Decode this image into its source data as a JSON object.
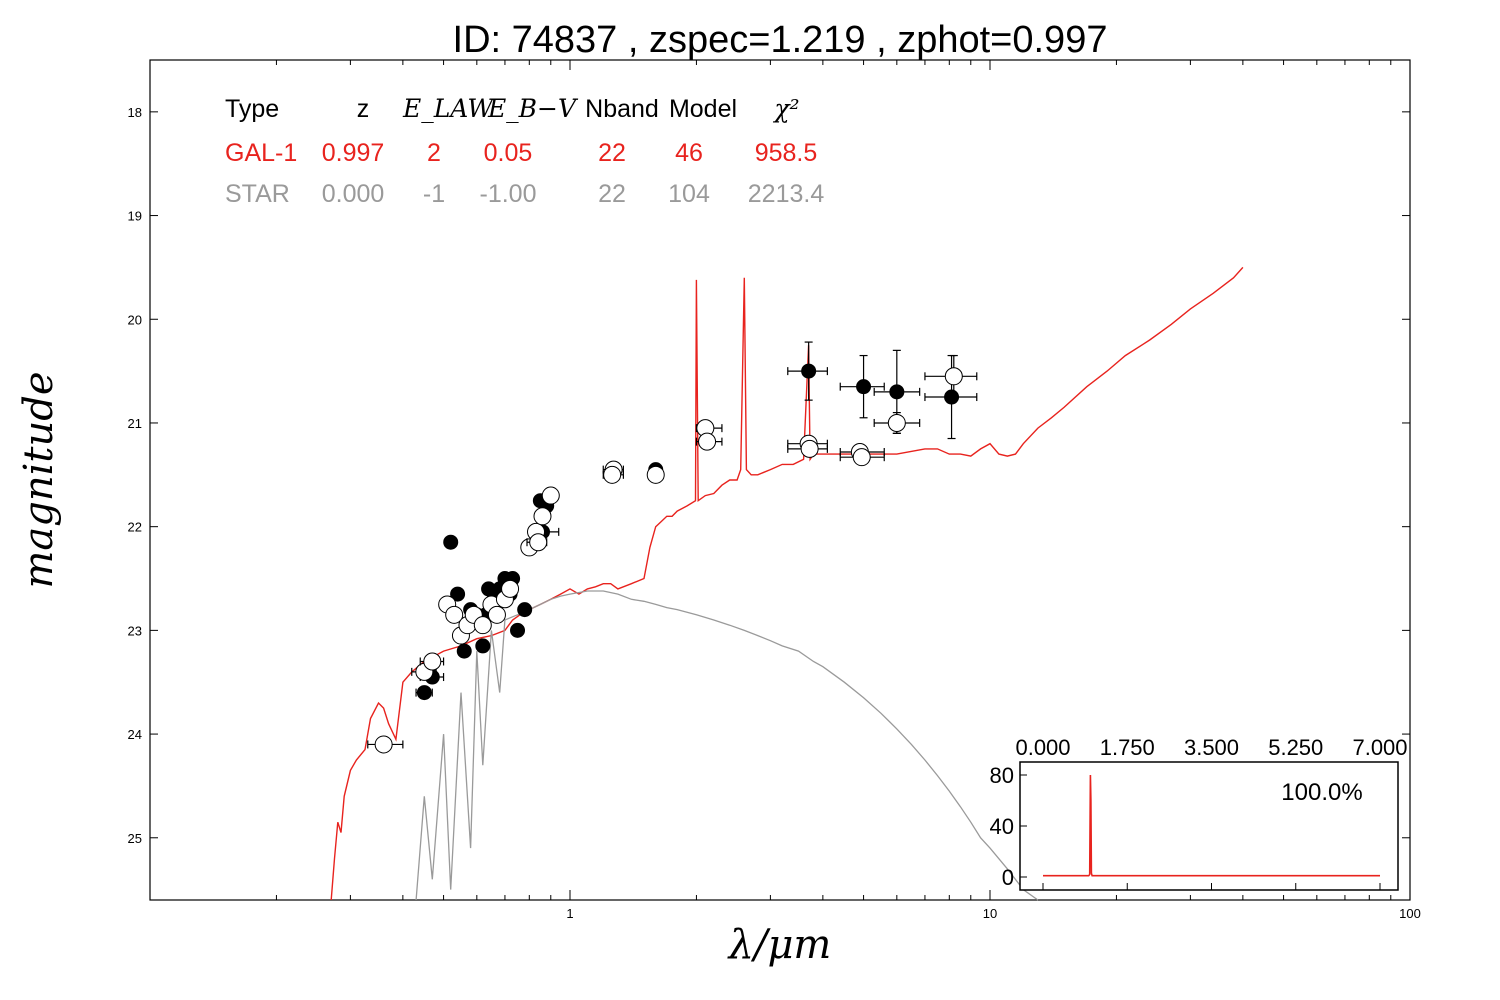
{
  "chart_data": {
    "type": "scatter",
    "title": "ID:  74837 , zspec=1.219 , zphot=0.997",
    "xlabel": "λ/μm",
    "ylabel": "magnitude",
    "x_scale": "log",
    "xlim": [
      0.1,
      100
    ],
    "ylim": [
      25.6,
      17.5
    ],
    "y_inverted": true,
    "x_tick_labels": [
      "1",
      "10",
      "100"
    ],
    "y_tick_labels": [
      "18",
      "19",
      "20",
      "21",
      "22",
      "23",
      "24",
      "25"
    ],
    "fit_table": {
      "headers": [
        "Type",
        "z",
        "E_LAW",
        "E_B−V",
        "Nband",
        "Model",
        "χ²"
      ],
      "rows": [
        {
          "name": "GAL-1",
          "color": "#e8231e",
          "values": [
            "GAL-1",
            "0.997",
            "2",
            "0.05",
            "22",
            "46",
            "958.5"
          ]
        },
        {
          "name": "STAR",
          "color": "#9a9a9a",
          "values": [
            "STAR",
            "0.000",
            "-1",
            "-1.00",
            "22",
            "104",
            "2213.4"
          ]
        }
      ]
    },
    "series": [
      {
        "name": "GAL-1",
        "kind": "line",
        "color": "#e8231e",
        "points": [
          [
            0.27,
            25.6
          ],
          [
            0.275,
            25.2
          ],
          [
            0.28,
            24.85
          ],
          [
            0.285,
            24.95
          ],
          [
            0.29,
            24.6
          ],
          [
            0.3,
            24.35
          ],
          [
            0.31,
            24.25
          ],
          [
            0.325,
            24.15
          ],
          [
            0.335,
            23.85
          ],
          [
            0.35,
            23.7
          ],
          [
            0.36,
            23.75
          ],
          [
            0.37,
            23.9
          ],
          [
            0.385,
            24.05
          ],
          [
            0.4,
            23.5
          ],
          [
            0.42,
            23.4
          ],
          [
            0.45,
            23.3
          ],
          [
            0.5,
            23.2
          ],
          [
            0.55,
            23.15
          ],
          [
            0.6,
            23.08
          ],
          [
            0.65,
            23.05
          ],
          [
            0.7,
            23.0
          ],
          [
            0.73,
            22.9
          ],
          [
            0.76,
            22.85
          ],
          [
            0.8,
            22.8
          ],
          [
            0.85,
            22.75
          ],
          [
            0.9,
            22.7
          ],
          [
            0.95,
            22.65
          ],
          [
            1.0,
            22.6
          ],
          [
            1.05,
            22.65
          ],
          [
            1.1,
            22.6
          ],
          [
            1.15,
            22.58
          ],
          [
            1.2,
            22.55
          ],
          [
            1.25,
            22.55
          ],
          [
            1.3,
            22.6
          ],
          [
            1.4,
            22.55
          ],
          [
            1.5,
            22.5
          ],
          [
            1.55,
            22.2
          ],
          [
            1.6,
            22.0
          ],
          [
            1.65,
            21.95
          ],
          [
            1.7,
            21.9
          ],
          [
            1.75,
            21.9
          ],
          [
            1.8,
            21.85
          ],
          [
            1.9,
            21.8
          ],
          [
            1.99,
            21.75
          ],
          [
            2.0,
            19.62
          ],
          [
            2.02,
            21.75
          ],
          [
            2.1,
            21.7
          ],
          [
            2.2,
            21.68
          ],
          [
            2.3,
            21.6
          ],
          [
            2.4,
            21.55
          ],
          [
            2.5,
            21.55
          ],
          [
            2.55,
            21.45
          ],
          [
            2.6,
            19.6
          ],
          [
            2.63,
            21.45
          ],
          [
            2.7,
            21.5
          ],
          [
            2.8,
            21.5
          ],
          [
            3.0,
            21.45
          ],
          [
            3.2,
            21.4
          ],
          [
            3.4,
            21.4
          ],
          [
            3.6,
            21.35
          ],
          [
            3.7,
            20.25
          ],
          [
            3.73,
            21.35
          ],
          [
            3.8,
            21.3
          ],
          [
            4.0,
            21.3
          ],
          [
            4.5,
            21.3
          ],
          [
            5.0,
            21.3
          ],
          [
            6.0,
            21.3
          ],
          [
            7.0,
            21.25
          ],
          [
            7.5,
            21.25
          ],
          [
            8.0,
            21.3
          ],
          [
            8.5,
            21.3
          ],
          [
            9.0,
            21.32
          ],
          [
            9.5,
            21.25
          ],
          [
            10.0,
            21.2
          ],
          [
            10.5,
            21.3
          ],
          [
            11.0,
            21.32
          ],
          [
            11.5,
            21.3
          ],
          [
            12.0,
            21.2
          ],
          [
            13.0,
            21.05
          ],
          [
            14.0,
            20.95
          ],
          [
            15.0,
            20.85
          ],
          [
            17.0,
            20.65
          ],
          [
            19.0,
            20.5
          ],
          [
            21.0,
            20.35
          ],
          [
            24.0,
            20.2
          ],
          [
            27.0,
            20.05
          ],
          [
            30.0,
            19.9
          ],
          [
            34.0,
            19.75
          ],
          [
            38.0,
            19.6
          ],
          [
            40.0,
            19.5
          ]
        ]
      },
      {
        "name": "STAR",
        "kind": "line",
        "color": "#9a9a9a",
        "points": [
          [
            0.43,
            25.6
          ],
          [
            0.45,
            24.6
          ],
          [
            0.47,
            25.4
          ],
          [
            0.5,
            24.0
          ],
          [
            0.52,
            25.5
          ],
          [
            0.55,
            23.6
          ],
          [
            0.58,
            25.1
          ],
          [
            0.6,
            23.2
          ],
          [
            0.62,
            24.3
          ],
          [
            0.65,
            23.0
          ],
          [
            0.68,
            23.6
          ],
          [
            0.7,
            22.9
          ],
          [
            0.75,
            22.85
          ],
          [
            0.8,
            22.8
          ],
          [
            0.85,
            22.75
          ],
          [
            0.9,
            22.7
          ],
          [
            0.95,
            22.67
          ],
          [
            1.0,
            22.65
          ],
          [
            1.1,
            22.62
          ],
          [
            1.2,
            22.62
          ],
          [
            1.3,
            22.65
          ],
          [
            1.4,
            22.7
          ],
          [
            1.5,
            22.72
          ],
          [
            1.6,
            22.75
          ],
          [
            1.7,
            22.78
          ],
          [
            1.8,
            22.8
          ],
          [
            2.0,
            22.85
          ],
          [
            2.2,
            22.9
          ],
          [
            2.4,
            22.95
          ],
          [
            2.6,
            23.0
          ],
          [
            2.8,
            23.05
          ],
          [
            3.0,
            23.1
          ],
          [
            3.2,
            23.15
          ],
          [
            3.5,
            23.2
          ],
          [
            3.8,
            23.3
          ],
          [
            4.0,
            23.35
          ],
          [
            4.5,
            23.5
          ],
          [
            5.0,
            23.65
          ],
          [
            5.5,
            23.8
          ],
          [
            6.0,
            23.95
          ],
          [
            6.5,
            24.1
          ],
          [
            7.0,
            24.25
          ],
          [
            7.5,
            24.4
          ],
          [
            8.0,
            24.55
          ],
          [
            8.5,
            24.7
          ],
          [
            9.0,
            24.85
          ],
          [
            9.5,
            25.0
          ],
          [
            10.0,
            25.1
          ],
          [
            11.0,
            25.3
          ],
          [
            12.0,
            25.5
          ],
          [
            13.0,
            25.6
          ]
        ]
      },
      {
        "name": "filled",
        "kind": "points",
        "filled": true,
        "points": [
          [
            0.45,
            23.6
          ],
          [
            0.47,
            23.45
          ],
          [
            0.52,
            22.15
          ],
          [
            0.54,
            22.65
          ],
          [
            0.56,
            23.2
          ],
          [
            0.58,
            22.8
          ],
          [
            0.6,
            22.85
          ],
          [
            0.62,
            23.15
          ],
          [
            0.63,
            22.85
          ],
          [
            0.64,
            22.6
          ],
          [
            0.66,
            22.65
          ],
          [
            0.68,
            22.6
          ],
          [
            0.7,
            22.5
          ],
          [
            0.72,
            22.65
          ],
          [
            0.73,
            22.5
          ],
          [
            0.75,
            23.0
          ],
          [
            0.78,
            22.8
          ],
          [
            0.8,
            22.2
          ],
          [
            0.85,
            21.75
          ],
          [
            0.86,
            22.05
          ],
          [
            0.88,
            21.8
          ],
          [
            1.6,
            21.45
          ],
          [
            3.7,
            20.5
          ],
          [
            5.0,
            20.65
          ],
          [
            6.0,
            20.7
          ],
          [
            8.1,
            20.75
          ]
        ],
        "xerr": [
          [
            0.43,
            0.47
          ],
          [
            0.44,
            0.5
          ],
          null,
          null,
          null,
          null,
          null,
          null,
          null,
          null,
          null,
          null,
          null,
          null,
          null,
          null,
          null,
          null,
          null,
          [
            0.82,
            0.94
          ],
          null,
          null,
          [
            3.3,
            4.1
          ],
          [
            4.4,
            5.6
          ],
          [
            5.3,
            6.8
          ],
          [
            7.0,
            9.3
          ]
        ],
        "yerr": [
          null,
          null,
          null,
          null,
          null,
          null,
          null,
          null,
          null,
          null,
          null,
          null,
          null,
          null,
          null,
          null,
          null,
          null,
          null,
          null,
          null,
          null,
          [
            20.22,
            20.78
          ],
          [
            20.35,
            20.95
          ],
          [
            20.3,
            21.1
          ],
          [
            20.35,
            21.15
          ]
        ]
      },
      {
        "name": "open",
        "kind": "points",
        "filled": false,
        "points": [
          [
            0.36,
            24.1
          ],
          [
            0.45,
            23.4
          ],
          [
            0.47,
            23.3
          ],
          [
            0.51,
            22.75
          ],
          [
            0.53,
            22.85
          ],
          [
            0.55,
            23.05
          ],
          [
            0.57,
            22.95
          ],
          [
            0.59,
            22.85
          ],
          [
            0.62,
            22.95
          ],
          [
            0.65,
            22.75
          ],
          [
            0.67,
            22.85
          ],
          [
            0.7,
            22.7
          ],
          [
            0.72,
            22.6
          ],
          [
            0.8,
            22.2
          ],
          [
            0.83,
            22.05
          ],
          [
            0.84,
            22.15
          ],
          [
            0.86,
            21.9
          ],
          [
            0.9,
            21.7
          ],
          [
            1.27,
            21.45
          ],
          [
            1.26,
            21.5
          ],
          [
            1.6,
            21.5
          ],
          [
            2.1,
            21.05
          ],
          [
            2.12,
            21.18
          ],
          [
            3.7,
            21.2
          ],
          [
            3.72,
            21.25
          ],
          [
            4.9,
            21.28
          ],
          [
            4.95,
            21.33
          ],
          [
            6.0,
            21.0
          ],
          [
            8.2,
            20.55
          ]
        ],
        "xerr": [
          [
            0.33,
            0.4
          ],
          [
            0.42,
            0.48
          ],
          [
            0.44,
            0.5
          ],
          null,
          null,
          null,
          null,
          null,
          null,
          null,
          null,
          null,
          null,
          null,
          null,
          [
            0.79,
            0.88
          ],
          null,
          [
            0.87,
            0.93
          ],
          [
            1.2,
            1.34
          ],
          [
            1.2,
            1.34
          ],
          null,
          [
            2.0,
            2.3
          ],
          [
            2.0,
            2.3
          ],
          [
            3.3,
            4.1
          ],
          [
            3.3,
            4.1
          ],
          [
            4.4,
            5.6
          ],
          [
            4.4,
            5.6
          ],
          [
            5.3,
            6.8
          ],
          [
            7.0,
            9.3
          ]
        ],
        "yerr": [
          null,
          null,
          null,
          null,
          null,
          null,
          null,
          null,
          null,
          null,
          null,
          null,
          null,
          null,
          null,
          null,
          null,
          null,
          null,
          null,
          null,
          null,
          null,
          null,
          null,
          null,
          null,
          [
            20.9,
            21.1
          ],
          [
            20.35,
            20.75
          ]
        ]
      }
    ],
    "inset": {
      "type": "line",
      "color": "#e8231e",
      "annotation": "100.0%",
      "xlim": [
        0,
        7
      ],
      "ylim": [
        0,
        85
      ],
      "x_tick_labels": [
        "0.000",
        "1.750",
        "3.500",
        "5.250",
        "7.000"
      ],
      "y_tick_labels": [
        "0",
        "40",
        "80"
      ],
      "points": [
        [
          0.0,
          1
        ],
        [
          0.95,
          1
        ],
        [
          0.97,
          2
        ],
        [
          0.985,
          80
        ],
        [
          0.995,
          60
        ],
        [
          1.005,
          3
        ],
        [
          1.02,
          1
        ],
        [
          7.0,
          1
        ]
      ]
    }
  }
}
